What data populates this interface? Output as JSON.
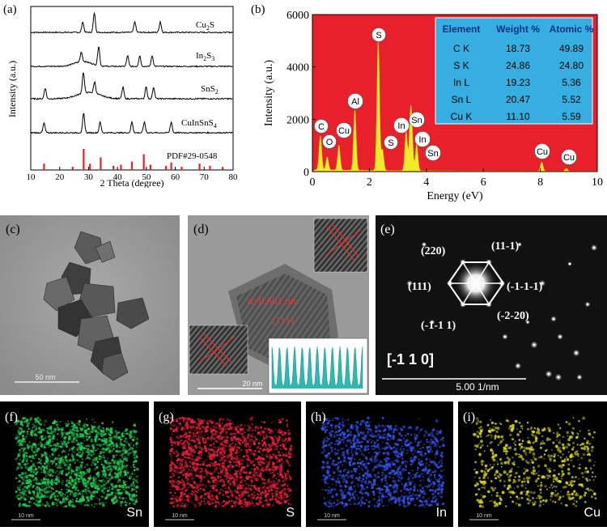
{
  "panel_labels": {
    "a": "(a)",
    "b": "(b)",
    "c": "(c)",
    "d": "(d)",
    "e": "(e)",
    "f": "(f)",
    "g": "(g)",
    "h": "(h)",
    "i": "(i)"
  },
  "xrd": {
    "ylabel": "Intensity (a.u.)",
    "xlabel": "2 Theta (degree)",
    "ticks": [
      "10",
      "20",
      "30",
      "40",
      "50",
      "60",
      "70",
      "80"
    ],
    "pdf_label": "PDF#29-0548",
    "pattern_names": {
      "cu2s": {
        "pre": "Cu",
        "sub": "2",
        "post": "S"
      },
      "in2s3": {
        "pre": "In",
        "sub": "2",
        "mid": "S",
        "sub2": "3"
      },
      "sns2": {
        "pre": "SnS",
        "sub": "2"
      },
      "cuinsns4": {
        "pre": "CuInSnS",
        "sub": "4"
      }
    }
  },
  "edx": {
    "ylabel": "Intensity (a.u.)",
    "xlabel": "Energy (eV)",
    "yticks": [
      "0",
      "2000",
      "4000",
      "6000"
    ],
    "xticks": [
      "0",
      "2",
      "4",
      "6",
      "8",
      "10"
    ],
    "peak_labels": [
      "C",
      "O",
      "Cu",
      "Al",
      "S",
      "S",
      "In",
      "Sn",
      "In",
      "Sn",
      "Cu",
      "Cu"
    ],
    "table": {
      "headers": [
        "Element",
        "Weight %",
        "Atomic %"
      ],
      "rows": [
        [
          "C K",
          "18.73",
          "49.89"
        ],
        [
          "S K",
          "24.86",
          "24.80"
        ],
        [
          "In L",
          "19.23",
          "5.36"
        ],
        [
          "Sn L",
          "20.47",
          "5.52"
        ],
        [
          "Cu K",
          "11.10",
          "5.59"
        ]
      ]
    }
  },
  "tem_c": {
    "scale": "50 nm"
  },
  "hrtem_d": {
    "d_spacing": "d=0.601 nm",
    "plane": "(111)",
    "scale": "20 nm"
  },
  "saed_e": {
    "zone_axis": "[-1 1 0]",
    "scale": "5.00 1/nm",
    "spots": [
      "(220)",
      "(11-1)",
      "(111)",
      "(-1-1-1)",
      "(-1-1 1)",
      "(-2-20)"
    ]
  },
  "maps": {
    "f": {
      "element": "Sn",
      "scale": "10 nm",
      "color": "#22cc55"
    },
    "g": {
      "element": "S",
      "scale": "10 nm",
      "color": "#e8203a"
    },
    "h": {
      "element": "In",
      "scale": "10 nm",
      "color": "#3355ee"
    },
    "i": {
      "element": "Cu",
      "scale": "10 nm",
      "color": "#d8d820"
    }
  },
  "chart_data": [
    {
      "type": "line",
      "title": "",
      "xlabel": "2 Theta (degree)",
      "ylabel": "Intensity (a.u.)",
      "xlim": [
        10,
        80
      ],
      "series": [
        {
          "name": "Cu2S",
          "peaks_x": [
            28.0,
            32.0,
            46.0,
            54.8
          ]
        },
        {
          "name": "In2S3",
          "peaks_x": [
            27.5,
            33.5,
            43.5,
            47.7,
            52
          ]
        },
        {
          "name": "SnS2",
          "peaks_x": [
            15.0,
            28.2,
            32.1,
            41.9,
            49.9,
            52.5
          ]
        },
        {
          "name": "CuInSnS4",
          "peaks_x": [
            14.6,
            28.3,
            34.0,
            45.0,
            49.3,
            58.6
          ]
        },
        {
          "name": "PDF#29-0548",
          "sticks": [
            [
              14.6,
              0.3
            ],
            [
              24.5,
              0.15
            ],
            [
              28.3,
              1.0
            ],
            [
              30.5,
              0.3
            ],
            [
              34.2,
              0.6
            ],
            [
              38.6,
              0.2
            ],
            [
              41.2,
              0.25
            ],
            [
              45.0,
              0.4
            ],
            [
              49.1,
              0.75
            ],
            [
              51.4,
              0.25
            ],
            [
              56.8,
              0.2
            ],
            [
              58.6,
              0.35
            ],
            [
              62.2,
              0.15
            ],
            [
              68.4,
              0.3
            ],
            [
              72.0,
              0.2
            ],
            [
              76.4,
              0.15
            ]
          ]
        }
      ]
    },
    {
      "type": "line",
      "title": "",
      "xlabel": "Energy (eV)",
      "ylabel": "Intensity (a.u.)",
      "xlim": [
        0,
        10
      ],
      "ylim": [
        0,
        6000
      ],
      "peaks": [
        {
          "label": "C",
          "x": 0.28,
          "y": 1300
        },
        {
          "label": "O",
          "x": 0.52,
          "y": 500
        },
        {
          "label": "Cu",
          "x": 0.93,
          "y": 950
        },
        {
          "label": "Al",
          "x": 1.49,
          "y": 2300
        },
        {
          "label": "S",
          "x": 2.31,
          "y": 5000
        },
        {
          "label": "S",
          "x": 2.46,
          "y": 800
        },
        {
          "label": "In",
          "x": 3.29,
          "y": 1500
        },
        {
          "label": "Sn",
          "x": 3.44,
          "y": 1800
        },
        {
          "label": "In",
          "x": 3.49,
          "y": 1100
        },
        {
          "label": "Sn",
          "x": 3.66,
          "y": 1000
        },
        {
          "label": "Cu",
          "x": 8.05,
          "y": 350
        },
        {
          "label": "Cu",
          "x": 8.91,
          "y": 100
        }
      ]
    }
  ]
}
